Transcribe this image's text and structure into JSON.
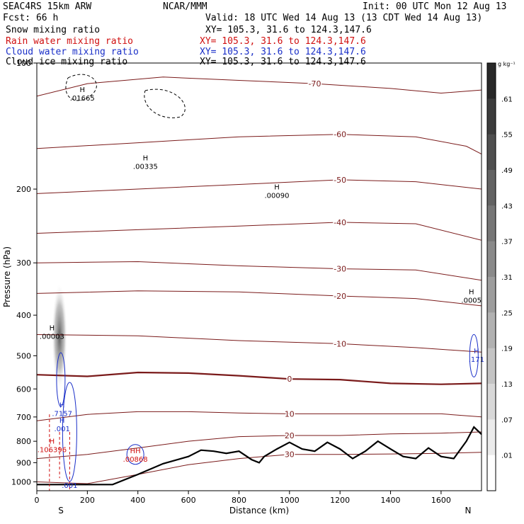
{
  "header": {
    "model": "SEAC4RS 15km ARW",
    "org": "NCAR/MMM",
    "init": "Init: 00 UTC Mon 12 Aug 13",
    "fcst": "Fcst:   66 h",
    "valid": "Valid: 18 UTC Wed 14 Aug 13 (13 CDT Wed 14 Aug 13)"
  },
  "legend": [
    {
      "name": "Snow mixing ratio",
      "xy": "",
      "color": "#000000"
    },
    {
      "name": "Rain water mixing ratio",
      "xy": "XY= 105.3, 31.6 to 124.3,147.6",
      "color": "#d01010"
    },
    {
      "name": "Cloud water mixing ratio",
      "xy": "XY= 105.3, 31.6 to 124.3,147.6",
      "color": "#1a2fc8"
    },
    {
      "name": "Cloud ice mixing ratio",
      "xy": "XY= 105.3, 31.6 to 124.3,147.6",
      "color": "#000000"
    }
  ],
  "snow_xy": "XY= 105.3, 31.6 to 124.3,147.6",
  "colorbar": {
    "unit": "g kg⁻¹",
    "labels": [
      ".61",
      ".55",
      ".49",
      ".43",
      ".37",
      ".31",
      ".25",
      ".19",
      ".13",
      ".07",
      ".01"
    ]
  },
  "chart_data": {
    "type": "cross-section",
    "xlabel": "Distance (km)",
    "ylabel": "Pressure (hPa)",
    "xlim": [
      0,
      1760
    ],
    "ylim": [
      1050,
      100
    ],
    "y_scale": "log-pressure",
    "x_ticks": [
      0,
      200,
      400,
      600,
      800,
      1000,
      1200,
      1400,
      1600
    ],
    "y_ticks": [
      100,
      200,
      300,
      400,
      500,
      600,
      700,
      800,
      900,
      1000
    ],
    "endpoints": {
      "left": "S",
      "right": "N"
    },
    "temperature_contours_C": [
      {
        "level": -70,
        "label": "-70",
        "points": [
          [
            0,
            120
          ],
          [
            200,
            112
          ],
          [
            500,
            108
          ],
          [
            800,
            110
          ],
          [
            1100,
            112
          ],
          [
            1400,
            115
          ],
          [
            1600,
            118
          ],
          [
            1760,
            116
          ]
        ]
      },
      {
        "level": -60,
        "label": "-60",
        "points": [
          [
            0,
            160
          ],
          [
            400,
            155
          ],
          [
            800,
            150
          ],
          [
            1200,
            148
          ],
          [
            1500,
            150
          ],
          [
            1700,
            158
          ],
          [
            1760,
            165
          ]
        ]
      },
      {
        "level": -50,
        "label": "-50",
        "points": [
          [
            0,
            205
          ],
          [
            400,
            200
          ],
          [
            800,
            195
          ],
          [
            1200,
            190
          ],
          [
            1500,
            192
          ],
          [
            1760,
            200
          ]
        ]
      },
      {
        "level": -40,
        "label": "-40",
        "points": [
          [
            0,
            255
          ],
          [
            400,
            250
          ],
          [
            800,
            245
          ],
          [
            1200,
            240
          ],
          [
            1500,
            242
          ],
          [
            1760,
            265
          ]
        ]
      },
      {
        "level": -30,
        "label": "-30",
        "points": [
          [
            0,
            300
          ],
          [
            400,
            298
          ],
          [
            800,
            305
          ],
          [
            1200,
            310
          ],
          [
            1500,
            312
          ],
          [
            1760,
            330
          ]
        ]
      },
      {
        "level": -20,
        "label": "-20",
        "points": [
          [
            0,
            355
          ],
          [
            400,
            350
          ],
          [
            800,
            352
          ],
          [
            1200,
            360
          ],
          [
            1500,
            365
          ],
          [
            1760,
            380
          ]
        ]
      },
      {
        "level": -10,
        "label": "-10",
        "points": [
          [
            0,
            445
          ],
          [
            400,
            448
          ],
          [
            800,
            460
          ],
          [
            1200,
            468
          ],
          [
            1500,
            478
          ],
          [
            1760,
            490
          ]
        ]
      },
      {
        "level": 0,
        "label": "0",
        "points": [
          [
            0,
            555
          ],
          [
            200,
            560
          ],
          [
            400,
            548
          ],
          [
            600,
            550
          ],
          [
            800,
            558
          ],
          [
            1000,
            568
          ],
          [
            1200,
            570
          ],
          [
            1400,
            582
          ],
          [
            1600,
            585
          ],
          [
            1760,
            582
          ]
        ]
      },
      {
        "level": 10,
        "label": "10",
        "points": [
          [
            0,
            715
          ],
          [
            200,
            690
          ],
          [
            400,
            680
          ],
          [
            600,
            680
          ],
          [
            800,
            685
          ],
          [
            1000,
            688
          ],
          [
            1200,
            688
          ],
          [
            1400,
            688
          ],
          [
            1600,
            688
          ],
          [
            1760,
            700
          ]
        ]
      },
      {
        "level": 20,
        "label": "20",
        "points": [
          [
            0,
            880
          ],
          [
            200,
            860
          ],
          [
            400,
            830
          ],
          [
            600,
            800
          ],
          [
            800,
            780
          ],
          [
            1000,
            775
          ],
          [
            1200,
            775
          ],
          [
            1400,
            768
          ],
          [
            1600,
            765
          ],
          [
            1760,
            760
          ]
        ]
      },
      {
        "level": 30,
        "label": "30",
        "points": [
          [
            0,
            1000
          ],
          [
            200,
            1010
          ],
          [
            400,
            960
          ],
          [
            600,
            910
          ],
          [
            800,
            880
          ],
          [
            1000,
            860
          ],
          [
            1200,
            860
          ],
          [
            1400,
            858
          ],
          [
            1600,
            855
          ],
          [
            1760,
            850
          ]
        ]
      }
    ],
    "contour_maxima": [
      {
        "label": "H",
        "value": ".01665",
        "x": 180,
        "p": 120
      },
      {
        "label": "H",
        "value": ".00335",
        "x": 430,
        "p": 175
      },
      {
        "label": "H",
        "value": ".00090",
        "x": 950,
        "p": 205
      },
      {
        "label": "H",
        "value": ".0005",
        "x": 1720,
        "p": 365
      },
      {
        "label": "H",
        "value": ".00003",
        "x": 60,
        "p": 445
      },
      {
        "label": "H",
        "value": ".171",
        "x": 1740,
        "p": 505
      },
      {
        "label": "H",
        "value": ".7157",
        "x": 100,
        "p": 680
      },
      {
        "label": "H",
        "value": ".001",
        "x": 100,
        "p": 740
      },
      {
        "label": "H",
        "value": ".106396",
        "x": 60,
        "p": 830
      },
      {
        "label": "HH",
        "value": ".00868",
        "x": 390,
        "p": 875
      },
      {
        "label": "",
        "value": ".001",
        "x": 130,
        "p": 1010
      }
    ],
    "terrain_p": [
      [
        0,
        1015
      ],
      [
        300,
        1015
      ],
      [
        400,
        960
      ],
      [
        500,
        905
      ],
      [
        600,
        870
      ],
      [
        650,
        840
      ],
      [
        700,
        845
      ],
      [
        750,
        855
      ],
      [
        800,
        845
      ],
      [
        850,
        885
      ],
      [
        880,
        900
      ],
      [
        900,
        870
      ],
      [
        950,
        835
      ],
      [
        1000,
        805
      ],
      [
        1050,
        835
      ],
      [
        1100,
        845
      ],
      [
        1150,
        805
      ],
      [
        1200,
        835
      ],
      [
        1250,
        880
      ],
      [
        1300,
        845
      ],
      [
        1350,
        800
      ],
      [
        1400,
        835
      ],
      [
        1450,
        870
      ],
      [
        1500,
        880
      ],
      [
        1550,
        830
      ],
      [
        1600,
        870
      ],
      [
        1650,
        880
      ],
      [
        1700,
        800
      ],
      [
        1730,
        740
      ],
      [
        1760,
        770
      ]
    ],
    "colorbar_range": [
      0.01,
      0.64
    ]
  }
}
